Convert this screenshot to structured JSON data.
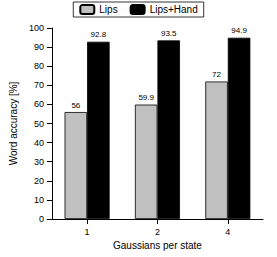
{
  "chart_data": {
    "type": "bar",
    "x_label": "Gaussians per state",
    "y_label": "Word accuracy [%]",
    "categories": [
      "1",
      "2",
      "4"
    ],
    "series": [
      {
        "name": "Lips",
        "color": "#c0c0c0",
        "values": [
          56,
          59.9,
          72
        ]
      },
      {
        "name": "Lips+Hand",
        "color": "#000000",
        "values": [
          92.8,
          93.5,
          94.9
        ]
      }
    ],
    "ylim": [
      0,
      100
    ],
    "yticks": [
      0,
      10,
      20,
      30,
      40,
      50,
      60,
      70,
      80,
      90,
      100
    ],
    "grid": false,
    "legend": "top",
    "data_labels": true
  }
}
